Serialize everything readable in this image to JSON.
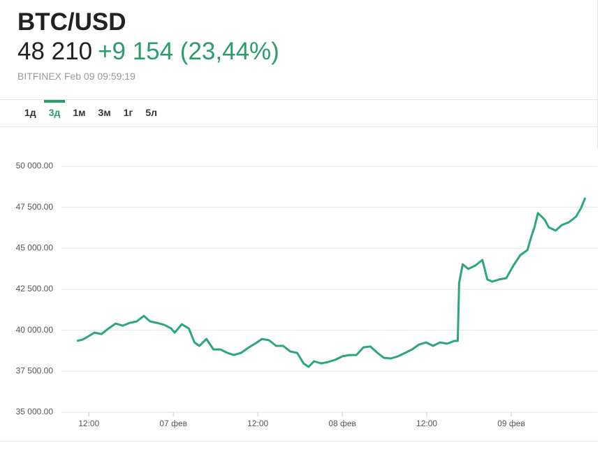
{
  "header": {
    "symbol": "BTC/USD",
    "price": "48 210",
    "change": "+9 154 (23,44%)",
    "source": "BITFINEX Feb 09 09:59:19"
  },
  "tabs": [
    "1д",
    "3д",
    "1м",
    "3м",
    "1г",
    "5л"
  ],
  "active_tab": 1,
  "chart_data": {
    "type": "line",
    "grid": true,
    "x": [
      10.3,
      11.1,
      11.8,
      12.8,
      13.8,
      14.8,
      15.8,
      16.8,
      17.8,
      18.8,
      19.8,
      20.7,
      21.7,
      22.7,
      23.7,
      24.2,
      25.2,
      26.2,
      27.0,
      27.7,
      28.7,
      29.7,
      30.7,
      31.7,
      32.6,
      33.6,
      34.6,
      35.6,
      36.6,
      37.6,
      38.6,
      39.6,
      40.6,
      41.6,
      42.5,
      43.2,
      44.0,
      45.0,
      46.0,
      47.0,
      48.0,
      49.0,
      50.0,
      51.0,
      52.0,
      53.0,
      53.9,
      54.9,
      55.9,
      56.9,
      57.9,
      58.9,
      59.9,
      60.9,
      61.9,
      62.9,
      63.9,
      64.4,
      64.6,
      65.1,
      65.9,
      66.9,
      67.9,
      68.6,
      69.3,
      70.3,
      71.3,
      72.3,
      73.3,
      74.3,
      74.8,
      75.3,
      75.8,
      76.3,
      76.8,
      77.3,
      78.3,
      79.2,
      80.2,
      81.2,
      81.9,
      82.5
    ],
    "series": [
      {
        "color": "#2aa877",
        "values": [
          39350,
          39430,
          39600,
          39860,
          39770,
          40110,
          40410,
          40280,
          40450,
          40540,
          40880,
          40540,
          40450,
          40330,
          40110,
          39860,
          40370,
          40110,
          39260,
          39050,
          39470,
          38830,
          38830,
          38620,
          38490,
          38620,
          38920,
          39180,
          39470,
          39390,
          39050,
          39050,
          38710,
          38620,
          37980,
          37770,
          38110,
          37980,
          38070,
          38200,
          38410,
          38490,
          38490,
          38960,
          39010,
          38620,
          38320,
          38280,
          38410,
          38620,
          38830,
          39130,
          39260,
          39050,
          39260,
          39180,
          39350,
          39350,
          42880,
          44030,
          43740,
          43950,
          44290,
          43100,
          42970,
          43100,
          43180,
          43950,
          44590,
          44890,
          45650,
          46290,
          47150,
          46930,
          46720,
          46290,
          46080,
          46420,
          46590,
          46930,
          47440,
          48080
        ]
      }
    ],
    "xlim": [
      8.8,
      84.2
    ],
    "xticks": [
      {
        "value": 12,
        "label": "12:00"
      },
      {
        "value": 24,
        "label": "07 фев"
      },
      {
        "value": 36,
        "label": "12:00"
      },
      {
        "value": 48,
        "label": "08 фев"
      },
      {
        "value": 60,
        "label": "12:00"
      },
      {
        "value": 72,
        "label": "09 фев"
      }
    ],
    "ylim": [
      35000,
      50000
    ],
    "yticks": [
      {
        "value": 35000,
        "label": "35 000.00"
      },
      {
        "value": 37500,
        "label": "37 500.00"
      },
      {
        "value": 40000,
        "label": "40 000.00"
      },
      {
        "value": 42500,
        "label": "42 500.00"
      },
      {
        "value": 45000,
        "label": "45 000.00"
      },
      {
        "value": 47500,
        "label": "47 500.00"
      },
      {
        "value": 50000,
        "label": "50 000.00"
      }
    ]
  }
}
